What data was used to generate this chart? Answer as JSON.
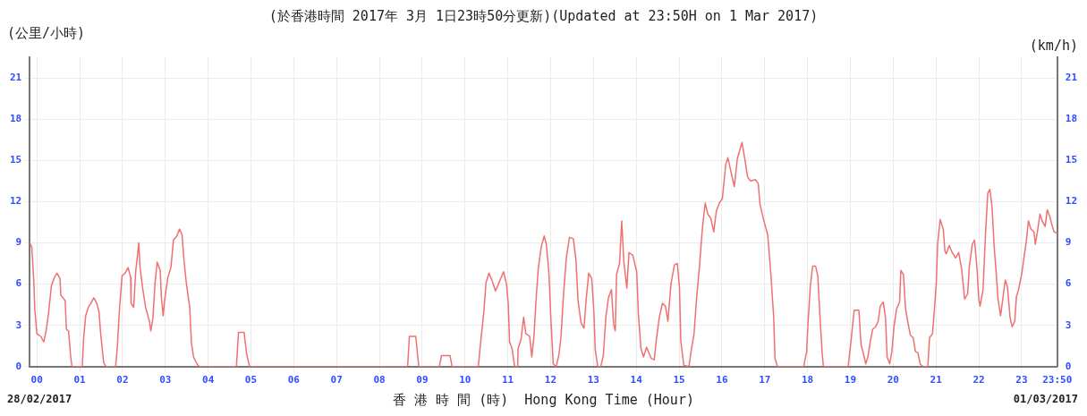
{
  "chart_data": {
    "type": "line",
    "title": "(於香港時間 2017年 3月 1日23時50分更新)(Updated at 23:50H on 1 Mar 2017)",
    "xlabel": "香 港 時 間 (時)  Hong Kong Time (Hour)",
    "ylabel": "(公里/小時)",
    "y2label": "(km/h)",
    "annotations": [
      "28/02/2017",
      "01/03/2017"
    ],
    "xlim": [
      -0.1667,
      23.8333
    ],
    "xticks": [
      {
        "value": 0,
        "label": "00"
      },
      {
        "value": 1,
        "label": "01"
      },
      {
        "value": 2,
        "label": "02"
      },
      {
        "value": 3,
        "label": "03"
      },
      {
        "value": 4,
        "label": "04"
      },
      {
        "value": 5,
        "label": "05"
      },
      {
        "value": 6,
        "label": "06"
      },
      {
        "value": 7,
        "label": "07"
      },
      {
        "value": 8,
        "label": "08"
      },
      {
        "value": 9,
        "label": "09"
      },
      {
        "value": 10,
        "label": "10"
      },
      {
        "value": 11,
        "label": "11"
      },
      {
        "value": 12,
        "label": "12"
      },
      {
        "value": 13,
        "label": "13"
      },
      {
        "value": 14,
        "label": "14"
      },
      {
        "value": 15,
        "label": "15"
      },
      {
        "value": 16,
        "label": "16"
      },
      {
        "value": 17,
        "label": "17"
      },
      {
        "value": 18,
        "label": "18"
      },
      {
        "value": 19,
        "label": "19"
      },
      {
        "value": 20,
        "label": "20"
      },
      {
        "value": 21,
        "label": "21"
      },
      {
        "value": 22,
        "label": "22"
      },
      {
        "value": 23,
        "label": "23"
      },
      {
        "value": 23.8333,
        "label": "23:50"
      }
    ],
    "ylim": [
      0,
      22.5
    ],
    "yticks": [
      0,
      3,
      6,
      9,
      12,
      15,
      18,
      21
    ],
    "y2lim": [
      0,
      22.5
    ],
    "y2ticks": [
      0,
      3,
      6,
      9,
      12,
      15,
      18,
      21
    ],
    "grid": true,
    "series": [
      {
        "color": "#f07070",
        "x": [
          -0.1667,
          -0.12,
          -0.07,
          -0.05,
          0,
          0.09,
          0.16,
          0.21,
          0.27,
          0.34,
          0.41,
          0.47,
          0.54,
          0.56,
          0.66,
          0.69,
          0.74,
          0.79,
          0.82,
          1.06,
          1.09,
          1.14,
          1.2,
          1.26,
          1.33,
          1.4,
          1.45,
          1.49,
          1.56,
          1.61,
          1.84,
          1.88,
          1.93,
          1.99,
          2.06,
          2.13,
          2.19,
          2.2,
          2.26,
          2.31,
          2.34,
          2.38,
          2.41,
          2.47,
          2.54,
          2.63,
          2.66,
          2.71,
          2.76,
          2.81,
          2.88,
          2.91,
          2.95,
          2.99,
          3.06,
          3.13,
          3.19,
          3.27,
          3.33,
          3.39,
          3.44,
          3.49,
          3.57,
          3.61,
          3.66,
          3.74,
          3.79,
          4.66,
          4.71,
          4.84,
          4.9,
          4.97,
          8.66,
          8.7,
          8.85,
          8.92,
          9.4,
          9.45,
          9.65,
          9.7,
          10.31,
          10.37,
          10.44,
          10.49,
          10.56,
          10.64,
          10.71,
          10.78,
          10.9,
          10.97,
          11.01,
          11.04,
          11.1,
          11.16,
          11.23,
          11.24,
          11.31,
          11.37,
          11.42,
          11.51,
          11.56,
          11.61,
          11.66,
          11.71,
          11.78,
          11.85,
          11.9,
          11.96,
          12.01,
          12.06,
          12.13,
          12.19,
          12.24,
          12.3,
          12.37,
          12.44,
          12.53,
          12.59,
          12.64,
          12.71,
          12.78,
          12.83,
          12.89,
          12.96,
          13.01,
          13.04,
          13.1,
          13.17,
          13.23,
          13.29,
          13.35,
          13.42,
          13.47,
          13.51,
          13.54,
          13.61,
          13.66,
          13.71,
          13.78,
          13.83,
          13.92,
          14.01,
          14.05,
          14.11,
          14.17,
          14.24,
          14.35,
          14.42,
          14.47,
          14.54,
          14.61,
          14.68,
          14.74,
          14.81,
          14.89,
          14.96,
          15.01,
          15.04,
          15.11,
          15.23,
          15.28,
          15.35,
          15.41,
          15.48,
          15.54,
          15.61,
          15.67,
          15.74,
          15.81,
          15.87,
          15.94,
          16.01,
          16.09,
          16.14,
          16.21,
          16.29,
          16.36,
          16.43,
          16.47,
          16.53,
          16.6,
          16.67,
          16.78,
          16.85,
          16.89,
          16.99,
          17.07,
          17.14,
          17.21,
          17.24,
          17.3,
          17.91,
          17.98,
          18.01,
          18.07,
          18.12,
          18.19,
          18.24,
          18.29,
          18.34,
          18.37,
          18.95,
          19.02,
          19.09,
          19.2,
          19.25,
          19.31,
          19.36,
          19.41,
          19.46,
          19.52,
          19.59,
          19.65,
          19.7,
          19.77,
          19.82,
          19.86,
          19.92,
          19.97,
          20.02,
          20.08,
          20.15,
          20.18,
          20.24,
          20.29,
          20.34,
          20.4,
          20.47,
          20.52,
          20.58,
          20.63,
          20.7,
          20.81,
          20.85,
          20.92,
          20.97,
          21.01,
          21.04,
          21.1,
          21.17,
          21.21,
          21.24,
          21.31,
          21.38,
          21.46,
          21.53,
          21.6,
          21.67,
          21.74,
          21.78,
          21.85,
          21.9,
          21.96,
          22.0,
          22.03,
          22.1,
          22.16,
          22.21,
          22.26,
          22.31,
          22.36,
          22.4,
          22.45,
          22.51,
          22.56,
          22.62,
          22.67,
          22.73,
          22.78,
          22.84,
          22.88,
          22.93,
          23.0,
          23.05,
          23.11,
          23.16,
          23.22,
          23.29,
          23.32,
          23.38,
          23.43,
          23.48,
          23.55,
          23.6,
          23.66,
          23.71,
          23.76,
          23.8333
        ],
        "values": [
          9.0,
          8.7,
          6.1,
          4.2,
          2.4,
          2.2,
          1.8,
          2.5,
          3.8,
          5.9,
          6.5,
          6.8,
          6.4,
          5.2,
          4.8,
          2.7,
          2.6,
          0.7,
          0,
          0,
          2.0,
          3.7,
          4.3,
          4.6,
          5.0,
          4.6,
          4.0,
          2.4,
          0.3,
          0,
          0,
          1.5,
          4.2,
          6.6,
          6.8,
          7.2,
          6.5,
          4.6,
          4.3,
          7.0,
          7.8,
          9.0,
          7.2,
          5.7,
          4.3,
          3.3,
          2.6,
          3.5,
          6.1,
          7.6,
          7.0,
          5.0,
          3.7,
          5.0,
          6.5,
          7.2,
          9.2,
          9.5,
          10.0,
          9.6,
          7.6,
          6.1,
          4.3,
          1.7,
          0.7,
          0.2,
          0,
          0,
          2.5,
          2.5,
          0.9,
          0,
          0,
          2.2,
          2.2,
          0,
          0,
          0.8,
          0.8,
          0,
          0,
          1.9,
          4.0,
          6.1,
          6.8,
          6.2,
          5.5,
          6.0,
          6.9,
          6.0,
          4.6,
          1.8,
          1.3,
          0,
          0,
          1.3,
          2.0,
          3.6,
          2.4,
          2.2,
          0.7,
          2.2,
          4.9,
          7.1,
          8.7,
          9.5,
          8.9,
          6.8,
          3.2,
          0.2,
          0,
          0.8,
          2.1,
          5.2,
          8.0,
          9.4,
          9.3,
          7.8,
          4.8,
          3.2,
          2.8,
          4.9,
          6.8,
          6.4,
          4.0,
          1.3,
          0,
          0,
          0.8,
          3.6,
          5.0,
          5.6,
          3.1,
          2.6,
          6.7,
          7.5,
          10.6,
          7.6,
          5.7,
          8.3,
          8.1,
          6.9,
          3.8,
          1.3,
          0.7,
          1.4,
          0.6,
          0.5,
          2.0,
          3.6,
          4.6,
          4.4,
          3.3,
          6.0,
          7.4,
          7.5,
          5.7,
          1.9,
          0.1,
          0,
          1.1,
          2.4,
          5.0,
          7.4,
          9.9,
          11.9,
          11.1,
          10.8,
          9.8,
          11.3,
          11.9,
          12.2,
          14.7,
          15.2,
          14.2,
          13.1,
          15.1,
          15.9,
          16.3,
          15.2,
          13.8,
          13.5,
          13.6,
          13.3,
          11.8,
          10.5,
          9.6,
          6.9,
          3.6,
          0.6,
          0,
          0,
          1.1,
          3.1,
          6.0,
          7.3,
          7.3,
          6.6,
          3.7,
          1.1,
          0,
          0,
          2.0,
          4.1,
          4.1,
          1.6,
          0.9,
          0.2,
          0.7,
          1.7,
          2.7,
          2.9,
          3.3,
          4.4,
          4.7,
          3.6,
          0.7,
          0.2,
          1.1,
          2.9,
          4.2,
          4.7,
          7.0,
          6.7,
          4.2,
          3.3,
          2.3,
          2.1,
          1.1,
          1.0,
          0.2,
          0,
          0,
          2.1,
          2.4,
          4.4,
          6.2,
          9.0,
          10.7,
          10.0,
          8.4,
          8.2,
          8.8,
          8.3,
          7.9,
          8.3,
          7.1,
          4.9,
          5.3,
          7.3,
          8.9,
          9.2,
          7.1,
          4.9,
          4.4,
          5.6,
          9.8,
          12.6,
          12.9,
          11.6,
          8.7,
          7.1,
          4.9,
          3.7,
          4.9,
          6.3,
          5.8,
          3.6,
          2.9,
          3.3,
          5.1,
          5.6,
          6.7,
          7.8,
          9.1,
          10.6,
          10.0,
          9.8,
          8.9,
          10.0,
          11.1,
          10.6,
          10.2,
          11.4,
          10.9,
          10.3,
          9.8,
          9.7
        ]
      }
    ]
  }
}
